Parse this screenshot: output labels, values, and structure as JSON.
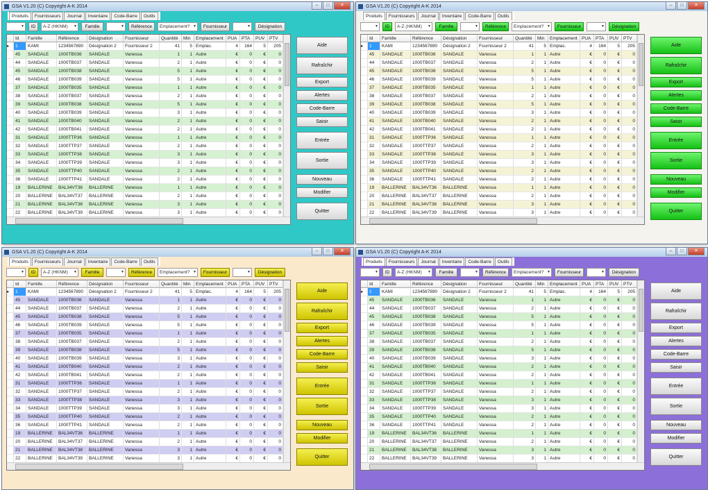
{
  "app": {
    "title": "GSA V1.20 (C) Copyright A-K 2014",
    "window_controls": [
      "–",
      "□",
      "✕"
    ],
    "tabs": [
      "Produits",
      "Fournisseurs",
      "Journal",
      "Inventaire",
      "Code-Barre",
      "Outils"
    ],
    "active_tab": 0,
    "toolbar": {
      "combo1": "",
      "id_button": "ID",
      "combo2": "A-Z (HKNM)",
      "famille_button": "Famille",
      "combo3": "",
      "reference_button": "Référence",
      "combo4": "Emplacement?",
      "fournisseur_button": "Fournisseur",
      "combo5": "",
      "designation_button": "Désignation"
    },
    "columns": [
      "Id",
      "Famille",
      "Référence",
      "Désignation",
      "Fournisseur",
      "Quantité",
      "Min",
      "Emplacement",
      "PUA",
      "PTA",
      "PUV",
      "PTV"
    ],
    "rows": [
      [
        "1",
        "KAMI",
        "1234567890",
        "Désignation 2",
        "Fournisseur 2",
        "41",
        "5",
        "Emplac.",
        "4",
        "164",
        "5",
        "205"
      ],
      [
        "45",
        "SANDALE",
        "1000TB036",
        "SANDALE",
        "Vanessa",
        "1",
        "1",
        "Autre",
        "€",
        "0",
        "€",
        "0"
      ],
      [
        "44",
        "SANDALE",
        "1000TB037",
        "SANDALE",
        "Vanessa",
        "2",
        "1",
        "Autre",
        "€",
        "0",
        "€",
        "0"
      ],
      [
        "45",
        "SANDALE",
        "1000TB038",
        "SANDALE",
        "Vanessa",
        "5",
        "1",
        "Autre",
        "€",
        "0",
        "€",
        "0"
      ],
      [
        "46",
        "SANDALE",
        "1000TB039",
        "SANDALE",
        "Vanessa",
        "5",
        "1",
        "Autre",
        "€",
        "0",
        "€",
        "0"
      ],
      [
        "37",
        "SANDALE",
        "1000TB035",
        "SANDALE",
        "Vanessa",
        "1",
        "1",
        "Autre",
        "€",
        "0",
        "€",
        "0"
      ],
      [
        "38",
        "SANDALE",
        "1000TB037",
        "SANDALE",
        "Vanessa",
        "2",
        "1",
        "Autre",
        "€",
        "0",
        "€",
        "0"
      ],
      [
        "39",
        "SANDALE",
        "1000TB038",
        "SANDALE",
        "Vanessa",
        "5",
        "1",
        "Autre",
        "€",
        "0",
        "€",
        "0"
      ],
      [
        "40",
        "SANDALE",
        "1000TB039",
        "SANDALE",
        "Vanessa",
        "3",
        "1",
        "Autre",
        "€",
        "0",
        "€",
        "0"
      ],
      [
        "41",
        "SANDALE",
        "1000TB040",
        "SANDALE",
        "Vanessa",
        "2",
        "1",
        "Autre",
        "€",
        "0",
        "€",
        "0"
      ],
      [
        "42",
        "SANDALE",
        "1000TB041",
        "SANDALE",
        "Vanessa",
        "2",
        "1",
        "Autre",
        "€",
        "0",
        "€",
        "0"
      ],
      [
        "31",
        "SANDALE",
        "1000TTP36",
        "SANDALE",
        "Vanessa",
        "1",
        "1",
        "Autre",
        "€",
        "0",
        "€",
        "0"
      ],
      [
        "32",
        "SANDALE",
        "1000TTP37",
        "SANDALE",
        "Vanessa",
        "2",
        "1",
        "Autre",
        "€",
        "0",
        "€",
        "0"
      ],
      [
        "33",
        "SANDALE",
        "1000TTP38",
        "SANDALE",
        "Vanessa",
        "3",
        "1",
        "Autre",
        "€",
        "0",
        "€",
        "0"
      ],
      [
        "34",
        "SANDALE",
        "1000TTP39",
        "SANDALE",
        "Vanessa",
        "3",
        "1",
        "Autre",
        "€",
        "0",
        "€",
        "0"
      ],
      [
        "35",
        "SANDALE",
        "1000TTP40",
        "SANDALE",
        "Vanessa",
        "2",
        "1",
        "Autre",
        "€",
        "0",
        "€",
        "0"
      ],
      [
        "36",
        "SANDALE",
        "1000TTP41",
        "SANDALE",
        "Vanessa",
        "2",
        "1",
        "Autre",
        "€",
        "0",
        "€",
        "0"
      ],
      [
        "19",
        "BALLERINE",
        "BAL34VT36",
        "BALLERINE",
        "Vanessa",
        "1",
        "1",
        "Autre",
        "€",
        "0",
        "€",
        "0"
      ],
      [
        "20",
        "BALLERINE",
        "BAL34VT37",
        "BALLERINE",
        "Vanessa",
        "2",
        "1",
        "Autre",
        "€",
        "0",
        "€",
        "0"
      ],
      [
        "21",
        "BALLERINE",
        "BAL34VT38",
        "BALLERINE",
        "Vanessa",
        "3",
        "1",
        "Autre",
        "€",
        "0",
        "€",
        "0"
      ],
      [
        "22",
        "BALLERINE",
        "BAL34VT39",
        "BALLERINE",
        "Vanessa",
        "3",
        "1",
        "Autre",
        "€",
        "0",
        "€",
        "0"
      ]
    ],
    "side_buttons": [
      "Aide",
      "Rafraîchir",
      "Export",
      "Alertes",
      "Code-Barre",
      "Saisir",
      "Entrée",
      "Sortie",
      "Nouveau",
      "Modifier",
      "Quitter"
    ]
  },
  "windows": [
    {
      "theme": "cyan",
      "row_alt_color": "#d6f1d2"
    },
    {
      "theme": "cream",
      "row_alt_color": "#f5f3d6"
    },
    {
      "theme": "peach",
      "row_alt_color": "#cfcdf2"
    },
    {
      "theme": "purple",
      "row_alt_color": "#d4f0cf"
    }
  ]
}
